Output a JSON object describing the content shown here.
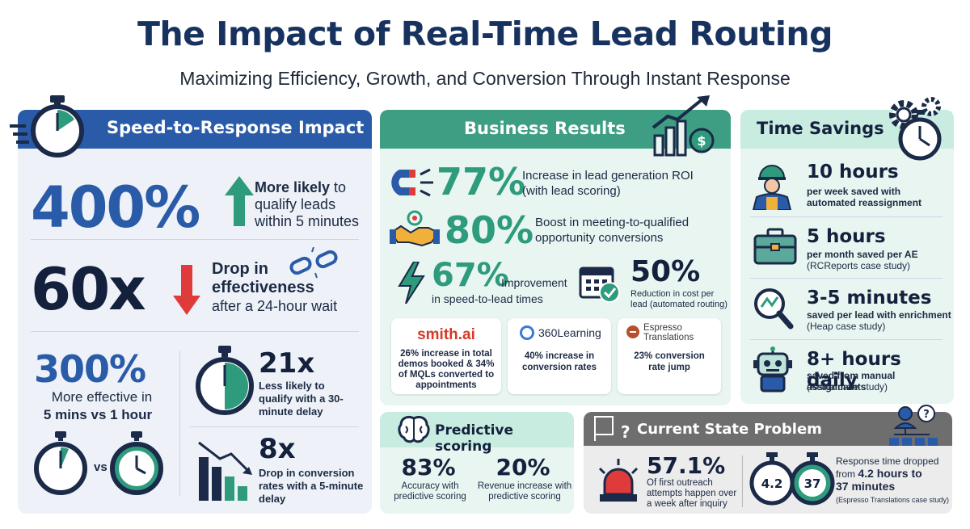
{
  "title": "The Impact of Real-Time Lead Routing",
  "subtitle": "Maximizing Efficiency, Growth, and Conversion Through Instant Response",
  "colors": {
    "navy": "#17325e",
    "blue": "#2a5ba8",
    "teal": "#2e9b7d",
    "red": "#e03b3b",
    "panel_blue": "#eef2f8",
    "panel_teal": "#e9f5f1",
    "grey": "#6e6e6e"
  },
  "speed": {
    "header": "Speed-to-Response Impact",
    "s1_value": "400%",
    "s1_line1": "More likely",
    "s1_line1b": " to",
    "s1_line2": "qualify leads",
    "s1_line3": "within 5 minutes",
    "s2_value": "60x",
    "s2_line1": "Drop in",
    "s2_line2": "effectiveness",
    "s2_line3": "after a 24-hour wait",
    "s3_value": "300%",
    "s3_line1": "More effective in",
    "s3_line2": "5 mins vs 1 hour",
    "vs": "vs",
    "s4_value": "21x",
    "s4_text": "Less likely to qualify with a 30-minute delay",
    "s5_value": "8x",
    "s5_text": "Drop in conversion rates with a 5-minute delay"
  },
  "business": {
    "header": "Business Results",
    "r1_value": "77%",
    "r1_text1": "Increase in lead generation ROI",
    "r1_text2": "(with lead scoring)",
    "r2_value": "80%",
    "r2_text1": "Boost in meeting-to-qualified",
    "r2_text2": "opportunity conversions",
    "r3_value": "67%",
    "r3_text1": "Improvement",
    "r3_text2": "in speed-to-lead times",
    "r4_value": "50%",
    "r4_text": "Reduction in cost per lead (automated routing)",
    "c1_logo": "smith.ai",
    "c1_text": "26% increase in total demos booked & 34% of MQLs converted to appointments",
    "c2_logo": "360Learning",
    "c2_text": "40% increase in conversion rates",
    "c3_logo1": "Espresso",
    "c3_logo2": "Translations",
    "c3_text": "23% conversion rate jump"
  },
  "time": {
    "header": "Time Savings",
    "t1_value": "10 hours",
    "t1_text": "per week saved with automated reassignment",
    "t2_value": "5 hours",
    "t2_text1": "per month saved per AE",
    "t2_text2": "(RCReports case study)",
    "t3_value": "3-5 minutes",
    "t3_text1": "saved per lead with enrichment",
    "t3_text2": "(Heap case study)",
    "t4_value": "8+ hours daily",
    "t4_text1": "saved from manual assignments",
    "t4_text2": "(Aetna case study)"
  },
  "predictive": {
    "header": "Predictive scoring",
    "p1_value": "83%",
    "p1_text": "Accuracy with predictive scoring",
    "p2_value": "20%",
    "p2_text": "Revenue increase with predictive scoring"
  },
  "problem": {
    "header": "Current State Problem",
    "q1_value": "57.1%",
    "q1_text": "Of first outreach attempts happen over a week after inquiry",
    "timer_a": "4.2",
    "timer_b": "37",
    "q2_text1": "Response time dropped",
    "q2_text2": "from ",
    "q2_bold1": "4.2 hours to",
    "q2_bold2": "37 minutes",
    "q2_text3": "(Espresso Translations case study)"
  },
  "icons": [
    "stopwatch-icon",
    "arrow-up-icon",
    "arrow-down-icon",
    "broken-chain-icon",
    "growth-chart-icon",
    "magnet-icon",
    "handshake-icon",
    "lightning-icon",
    "calendar-check-icon",
    "gears-clock-icon",
    "worker-icon",
    "briefcase-icon",
    "magnifier-icon",
    "robot-icon",
    "brain-icon",
    "siren-icon",
    "question-flow-icon",
    "org-chart-icon",
    "declining-bars-icon"
  ]
}
